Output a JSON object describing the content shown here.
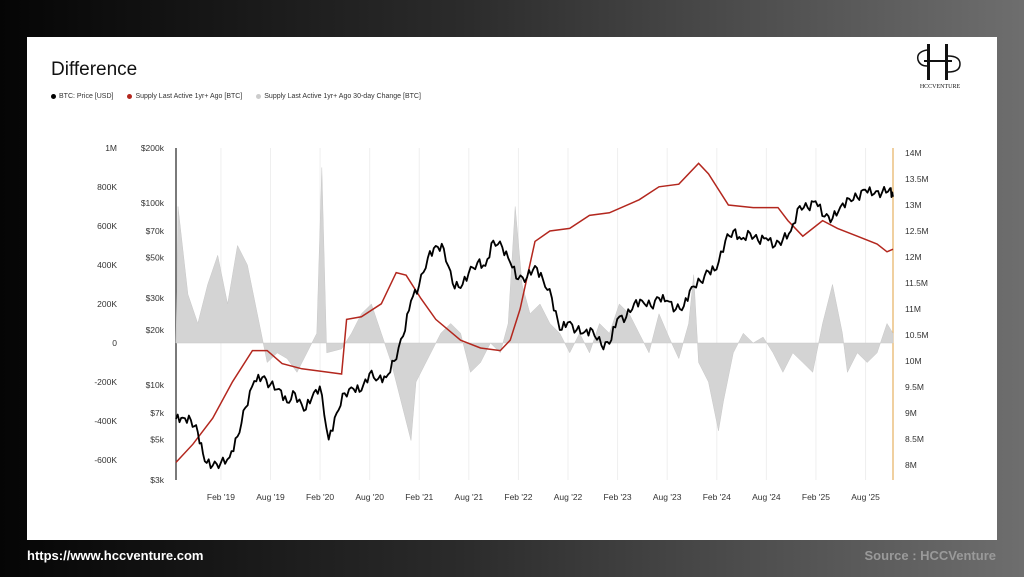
{
  "footer": {
    "url": "https://www.hccventure.com",
    "source": "Source : HCCVenture"
  },
  "logo": {
    "text": "HCCVENTURE"
  },
  "colors": {
    "price": "#000000",
    "supply": "#b3271e",
    "change": "#d4d4d4",
    "right_axis": "#e0a040"
  },
  "chart_data": {
    "type": "line",
    "title": "Difference",
    "legend": [
      {
        "label": "BTC: Price [USD]",
        "color": "#000000"
      },
      {
        "label": "Supply Last Active 1yr+ Ago [BTC]",
        "color": "#b3271e"
      },
      {
        "label": "Supply Last Active 1yr+ Ago 30-day Change [BTC]",
        "color": "#cccccc"
      }
    ],
    "x_ticks": [
      {
        "label": "Feb '19",
        "t": 2019.083
      },
      {
        "label": "Aug '19",
        "t": 2019.583
      },
      {
        "label": "Feb '20",
        "t": 2020.083
      },
      {
        "label": "Aug '20",
        "t": 2020.583
      },
      {
        "label": "Feb '21",
        "t": 2021.083
      },
      {
        "label": "Aug '21",
        "t": 2021.583
      },
      {
        "label": "Feb '22",
        "t": 2022.083
      },
      {
        "label": "Aug '22",
        "t": 2022.583
      },
      {
        "label": "Feb '23",
        "t": 2023.083
      },
      {
        "label": "Aug '23",
        "t": 2023.583
      },
      {
        "label": "Feb '24",
        "t": 2024.083
      },
      {
        "label": "Aug '24",
        "t": 2024.583
      },
      {
        "label": "Feb '25",
        "t": 2025.083
      },
      {
        "label": "Aug '25",
        "t": 2025.583
      }
    ],
    "xlim": [
      2018.63,
      2025.86
    ],
    "change_axis": {
      "ticks": [
        {
          "label": "1M",
          "v": 1000
        },
        {
          "label": "800K",
          "v": 800
        },
        {
          "label": "600K",
          "v": 600
        },
        {
          "label": "400K",
          "v": 400
        },
        {
          "label": "200K",
          "v": 200
        },
        {
          "label": "0",
          "v": 0
        },
        {
          "label": "-200K",
          "v": -200
        },
        {
          "label": "-400K",
          "v": -400
        },
        {
          "label": "-600K",
          "v": -600
        }
      ],
      "ylim_k": [
        -700,
        1000
      ]
    },
    "price_axis": {
      "scale": "log",
      "ticks": [
        {
          "label": "$200k",
          "v": 200000
        },
        {
          "label": "$100k",
          "v": 100000
        },
        {
          "label": "$70k",
          "v": 70000
        },
        {
          "label": "$50k",
          "v": 50000
        },
        {
          "label": "$30k",
          "v": 30000
        },
        {
          "label": "$20k",
          "v": 20000
        },
        {
          "label": "$10k",
          "v": 10000
        },
        {
          "label": "$7k",
          "v": 7000
        },
        {
          "label": "$5k",
          "v": 5000
        },
        {
          "label": "$3k",
          "v": 3000
        }
      ],
      "ylim": [
        3000,
        200000
      ]
    },
    "supply_axis": {
      "ticks": [
        {
          "label": "14M",
          "v": 14
        },
        {
          "label": "13.5M",
          "v": 13.5
        },
        {
          "label": "13M",
          "v": 13
        },
        {
          "label": "12.5M",
          "v": 12.5
        },
        {
          "label": "12M",
          "v": 12
        },
        {
          "label": "11.5M",
          "v": 11.5
        },
        {
          "label": "11M",
          "v": 11
        },
        {
          "label": "10.5M",
          "v": 10.5
        },
        {
          "label": "10M",
          "v": 10
        },
        {
          "label": "9.5M",
          "v": 9.5
        },
        {
          "label": "9M",
          "v": 9
        },
        {
          "label": "8.5M",
          "v": 8.5
        },
        {
          "label": "8M",
          "v": 8
        }
      ],
      "ylim_m": [
        7.9,
        14.1
      ]
    },
    "series": [
      {
        "name": "BTC: Price [USD]",
        "t": [
          2018.63,
          2018.7,
          2018.78,
          2018.85,
          2018.92,
          2019.0,
          2019.08,
          2019.17,
          2019.25,
          2019.33,
          2019.42,
          2019.5,
          2019.58,
          2019.67,
          2019.75,
          2019.83,
          2019.92,
          2020.0,
          2020.08,
          2020.17,
          2020.25,
          2020.33,
          2020.42,
          2020.5,
          2020.58,
          2020.67,
          2020.75,
          2020.83,
          2020.92,
          2021.0,
          2021.08,
          2021.17,
          2021.25,
          2021.33,
          2021.42,
          2021.5,
          2021.58,
          2021.67,
          2021.75,
          2021.83,
          2021.92,
          2022.0,
          2022.08,
          2022.17,
          2022.25,
          2022.33,
          2022.42,
          2022.5,
          2022.58,
          2022.67,
          2022.75,
          2022.83,
          2022.92,
          2023.0,
          2023.08,
          2023.17,
          2023.25,
          2023.33,
          2023.42,
          2023.5,
          2023.58,
          2023.67,
          2023.75,
          2023.83,
          2023.92,
          2024.0,
          2024.08,
          2024.17,
          2024.25,
          2024.33,
          2024.42,
          2024.5,
          2024.58,
          2024.67,
          2024.75,
          2024.83,
          2024.92,
          2025.0,
          2025.08,
          2025.17,
          2025.25,
          2025.33,
          2025.42,
          2025.5,
          2025.58,
          2025.67,
          2025.75,
          2025.83,
          2025.86
        ],
        "values": [
          6500,
          6600,
          6400,
          5500,
          3800,
          3600,
          3700,
          4000,
          5200,
          7500,
          10500,
          11000,
          10000,
          9500,
          8000,
          9000,
          7200,
          8500,
          9800,
          5000,
          7000,
          9000,
          9500,
          9300,
          11500,
          10800,
          11000,
          13500,
          18500,
          29000,
          35000,
          50000,
          58000,
          56000,
          36000,
          34000,
          41000,
          47000,
          45000,
          62000,
          57000,
          47000,
          38000,
          39000,
          45000,
          38000,
          30000,
          20000,
          22000,
          20000,
          19500,
          20000,
          16500,
          16800,
          23000,
          23500,
          28000,
          29000,
          27000,
          30000,
          29000,
          26000,
          27000,
          34500,
          37000,
          42000,
          43000,
          62000,
          70000,
          63000,
          68000,
          62000,
          64000,
          58000,
          63000,
          70000,
          96000,
          94000,
          102000,
          84000,
          82000,
          95000,
          105000,
          107000,
          118000,
          112000,
          114000,
          120000,
          108000
        ]
      },
      {
        "name": "Supply Last Active 1yr+ Ago [BTC]",
        "unit": "M",
        "t": [
          2018.63,
          2018.8,
          2019.0,
          2019.2,
          2019.4,
          2019.55,
          2019.7,
          2019.9,
          2020.1,
          2020.3,
          2020.35,
          2020.5,
          2020.7,
          2020.85,
          2020.95,
          2021.1,
          2021.25,
          2021.5,
          2021.7,
          2021.9,
          2022.0,
          2022.1,
          2022.25,
          2022.4,
          2022.6,
          2022.8,
          2023.0,
          2023.3,
          2023.5,
          2023.7,
          2023.9,
          2024.0,
          2024.2,
          2024.45,
          2024.7,
          2024.8,
          2024.95,
          2025.15,
          2025.3,
          2025.5,
          2025.7,
          2025.8,
          2025.86
        ],
        "values": [
          8.05,
          8.4,
          8.9,
          9.6,
          10.2,
          10.2,
          9.95,
          9.85,
          9.8,
          9.75,
          10.8,
          10.85,
          11.1,
          11.7,
          11.65,
          11.2,
          10.8,
          10.4,
          10.25,
          10.2,
          10.4,
          11.0,
          12.3,
          12.5,
          12.55,
          12.8,
          12.85,
          13.1,
          13.35,
          13.4,
          13.8,
          13.6,
          13.0,
          12.95,
          12.95,
          12.7,
          12.4,
          12.7,
          12.55,
          12.4,
          12.25,
          12.1,
          12.15
        ]
      },
      {
        "name": "Supply Last Active 1yr+ Ago 30-day Change [BTC]",
        "unit": "K",
        "t": [
          2018.63,
          2018.65,
          2018.75,
          2018.85,
          2018.95,
          2019.05,
          2019.15,
          2019.25,
          2019.35,
          2019.45,
          2019.55,
          2019.65,
          2019.75,
          2019.85,
          2019.95,
          2020.05,
          2020.1,
          2020.15,
          2020.3,
          2020.4,
          2020.5,
          2020.6,
          2020.7,
          2020.8,
          2020.9,
          2021.0,
          2021.05,
          2021.15,
          2021.3,
          2021.4,
          2021.5,
          2021.6,
          2021.7,
          2021.8,
          2021.9,
          2021.98,
          2022.05,
          2022.12,
          2022.2,
          2022.3,
          2022.4,
          2022.5,
          2022.6,
          2022.7,
          2022.8,
          2022.9,
          2023.0,
          2023.1,
          2023.2,
          2023.3,
          2023.4,
          2023.5,
          2023.6,
          2023.7,
          2023.8,
          2023.85,
          2023.9,
          2024.0,
          2024.1,
          2024.15,
          2024.25,
          2024.35,
          2024.45,
          2024.55,
          2024.65,
          2024.75,
          2024.85,
          2024.95,
          2025.05,
          2025.15,
          2025.25,
          2025.35,
          2025.4,
          2025.5,
          2025.6,
          2025.7,
          2025.8,
          2025.86
        ],
        "values": [
          0,
          700,
          250,
          100,
          300,
          450,
          200,
          500,
          400,
          150,
          -100,
          -50,
          -80,
          -150,
          -50,
          50,
          900,
          -50,
          -30,
          50,
          150,
          200,
          50,
          -100,
          -300,
          -500,
          -200,
          -100,
          50,
          100,
          50,
          -150,
          -100,
          0,
          -50,
          100,
          700,
          300,
          150,
          200,
          100,
          50,
          -50,
          50,
          -50,
          100,
          50,
          200,
          150,
          50,
          -50,
          150,
          30,
          -80,
          100,
          350,
          -100,
          -200,
          -450,
          -300,
          -50,
          50,
          0,
          30,
          -50,
          -150,
          -50,
          -100,
          -150,
          100,
          300,
          50,
          -150,
          -50,
          -100,
          -50,
          100,
          50
        ]
      }
    ]
  }
}
